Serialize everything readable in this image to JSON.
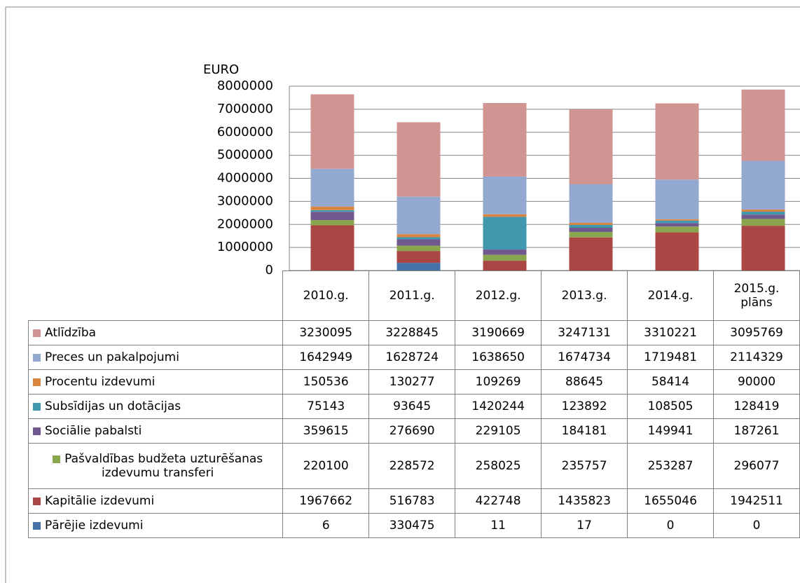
{
  "chart_data": {
    "type": "stacked_bar",
    "y_label": "EURO",
    "categories": [
      "2010.g.",
      "2011.g.",
      "2012.g.",
      "2013.g.",
      "2014.g.",
      "2015.g. plāns"
    ],
    "ylim": [
      0,
      8000000
    ],
    "yticks": [
      0,
      1000000,
      2000000,
      3000000,
      4000000,
      5000000,
      6000000,
      7000000,
      8000000
    ],
    "grid": true,
    "series": [
      {
        "name": "Atlīdzība",
        "color": "#d09493",
        "values": [
          3230095,
          3228845,
          3190669,
          3247131,
          3310221,
          3095769
        ]
      },
      {
        "name": "Preces un pakalpojumi",
        "color": "#93a9cf",
        "values": [
          1642949,
          1628724,
          1638650,
          1674734,
          1719481,
          2114329
        ]
      },
      {
        "name": "Procentu izdevumi",
        "color": "#db843d",
        "values": [
          150536,
          130277,
          109269,
          88645,
          58414,
          90000
        ]
      },
      {
        "name": "Subsīdijas un dotācijas",
        "color": "#4198af",
        "values": [
          75143,
          93645,
          1420244,
          123892,
          108505,
          128419
        ]
      },
      {
        "name": "Sociālie pabalsti",
        "color": "#71588f",
        "values": [
          359615,
          276690,
          229105,
          184181,
          149941,
          187261
        ]
      },
      {
        "name": "Pašvaldības budžeta uzturēšanas izdevumu transferi",
        "color": "#89a54e",
        "values": [
          220100,
          228572,
          258025,
          235757,
          253287,
          296077
        ]
      },
      {
        "name": "Kapitālie izdevumi",
        "color": "#aa4643",
        "values": [
          1967662,
          516783,
          422748,
          1435823,
          1655046,
          1942511
        ]
      },
      {
        "name": "Pārējie izdevumi",
        "color": "#4572a7",
        "values": [
          6,
          330475,
          11,
          17,
          0,
          0
        ]
      }
    ]
  }
}
